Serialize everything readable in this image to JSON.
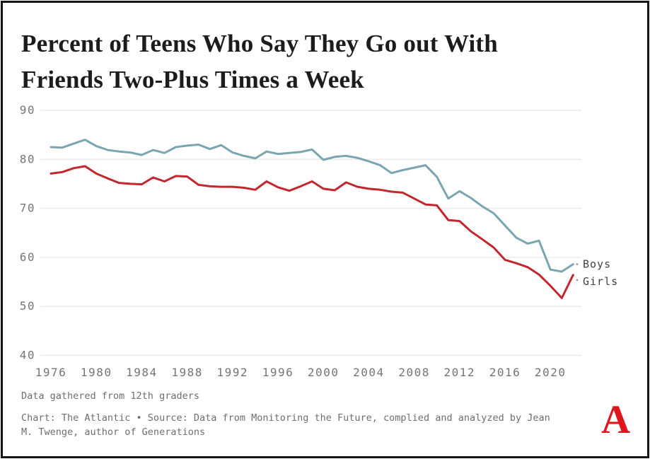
{
  "page": {
    "title": "Percent of Teens Who Say They Go out With Friends Two-Plus Times a Week",
    "note": "Data gathered from 12th graders",
    "source": "Chart: The Atlantic • Source: Data from Monitoring the Future, complied and analyzed by Jean M. Twenge, author of Generations",
    "logo_letter": "A"
  },
  "colors": {
    "boys_line": "#79a6b1",
    "girls_line": "#c2272e",
    "gridline": "#e8e8e8",
    "axis_text": "#757575",
    "series_label_text": "#414141",
    "leader_mark": "#9a9a9a",
    "title_text": "#1c1c1c",
    "footer_text": "#6e6e6e",
    "logo_red": "#e0161f"
  },
  "chart_data": {
    "type": "line",
    "title": "Percent of Teens Who Say They Go out With Friends Two-Plus Times a Week",
    "x": [
      1976,
      1977,
      1978,
      1979,
      1980,
      1981,
      1982,
      1983,
      1984,
      1985,
      1986,
      1987,
      1988,
      1989,
      1990,
      1991,
      1992,
      1993,
      1994,
      1995,
      1996,
      1997,
      1998,
      1999,
      2000,
      2001,
      2002,
      2003,
      2004,
      2005,
      2006,
      2007,
      2008,
      2009,
      2010,
      2011,
      2012,
      2013,
      2014,
      2015,
      2016,
      2017,
      2018,
      2019,
      2020,
      2021,
      2022
    ],
    "series": [
      {
        "name": "Boys",
        "color": "#79a6b1",
        "values": [
          82.5,
          82.4,
          83.2,
          84.0,
          82.7,
          81.9,
          81.6,
          81.4,
          80.9,
          81.9,
          81.3,
          82.5,
          82.8,
          83.0,
          82.1,
          82.9,
          81.4,
          80.7,
          80.2,
          81.6,
          81.1,
          81.3,
          81.5,
          82.0,
          79.9,
          80.5,
          80.7,
          80.3,
          79.6,
          78.8,
          77.2,
          77.8,
          78.3,
          78.8,
          76.4,
          72.0,
          73.5,
          72.1,
          70.4,
          69.0,
          66.5,
          64.0,
          62.8,
          63.4,
          57.5,
          57.1,
          58.6
        ]
      },
      {
        "name": "Girls",
        "color": "#c2272e",
        "values": [
          77.1,
          77.4,
          78.2,
          78.6,
          77.1,
          76.1,
          75.2,
          75.0,
          74.9,
          76.3,
          75.5,
          76.6,
          76.5,
          74.8,
          74.5,
          74.4,
          74.4,
          74.2,
          73.8,
          75.5,
          74.3,
          73.6,
          74.5,
          75.5,
          74.0,
          73.7,
          75.3,
          74.4,
          74.0,
          73.8,
          73.4,
          73.2,
          72.0,
          70.8,
          70.6,
          67.6,
          67.4,
          65.3,
          63.7,
          62.0,
          59.5,
          58.8,
          58.0,
          56.5,
          54.2,
          51.7,
          56.4
        ]
      }
    ],
    "xlabel": "",
    "ylabel": "",
    "ylim": [
      40,
      90
    ],
    "yticks": [
      90,
      80,
      70,
      60,
      50,
      40
    ],
    "xticks": [
      1976,
      1980,
      1984,
      1988,
      1992,
      1996,
      2000,
      2004,
      2008,
      2012,
      2016,
      2020
    ],
    "grid": "horizontal",
    "legend_position": "line-end-labels"
  }
}
